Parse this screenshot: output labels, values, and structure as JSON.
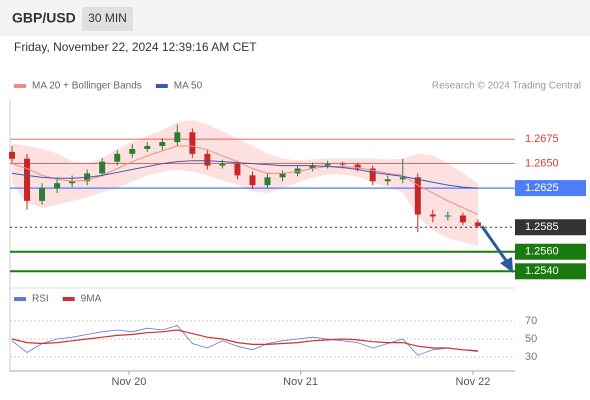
{
  "header": {
    "symbol": "GBP/USD",
    "interval": "30 MIN",
    "datetime": "Friday, November 22, 2024 12:39:16 AM CET",
    "credit": "Research © 2024 Trading Central"
  },
  "chart_data": [
    {
      "type": "candlestick",
      "up_color": "#2e7d32",
      "down_color": "#c62828",
      "band_color": "#fde1e1",
      "open": [
        1.2662,
        1.2655,
        1.2612,
        1.2625,
        1.263,
        1.2632,
        1.264,
        1.2652,
        1.266,
        1.2665,
        1.2668,
        1.2672,
        1.2682,
        1.266,
        1.2648,
        1.265,
        1.2638,
        1.2628,
        1.2636,
        1.264,
        1.2645,
        1.2648,
        1.265,
        1.2649,
        1.2645,
        1.2632,
        1.2634,
        1.2636,
        1.2598,
        1.2596,
        1.2597,
        1.259
      ],
      "high": [
        1.2668,
        1.266,
        1.263,
        1.2636,
        1.2638,
        1.2644,
        1.2656,
        1.2664,
        1.267,
        1.2672,
        1.2676,
        1.269,
        1.2686,
        1.2664,
        1.2654,
        1.2653,
        1.2642,
        1.264,
        1.2643,
        1.2648,
        1.2651,
        1.2653,
        1.2652,
        1.2651,
        1.2648,
        1.2638,
        1.2655,
        1.264,
        1.2603,
        1.2601,
        1.26,
        1.2593
      ],
      "low": [
        1.265,
        1.2603,
        1.2608,
        1.262,
        1.2626,
        1.2628,
        1.2637,
        1.2648,
        1.2656,
        1.2662,
        1.2664,
        1.2668,
        1.2656,
        1.2644,
        1.2645,
        1.2634,
        1.2624,
        1.2625,
        1.2632,
        1.2637,
        1.2642,
        1.2645,
        1.2645,
        1.2642,
        1.2628,
        1.2628,
        1.263,
        1.258,
        1.259,
        1.2592,
        1.2587,
        1.2584
      ],
      "close": [
        1.2655,
        1.2612,
        1.2625,
        1.263,
        1.2632,
        1.264,
        1.2652,
        1.266,
        1.2665,
        1.2668,
        1.2672,
        1.2682,
        1.266,
        1.2648,
        1.265,
        1.2638,
        1.2628,
        1.2636,
        1.264,
        1.2645,
        1.2648,
        1.265,
        1.2649,
        1.2645,
        1.2632,
        1.2634,
        1.2636,
        1.2598,
        1.2596,
        1.2597,
        1.259,
        1.2586
      ],
      "series": [
        {
          "name": "MA 20 + Bollinger Bands",
          "color": "#f28b82",
          "values": [
            1.265,
            1.2645,
            1.2638,
            1.2634,
            1.2632,
            1.2633,
            1.2638,
            1.2645,
            1.2652,
            1.2658,
            1.2663,
            1.2668,
            1.2668,
            1.2664,
            1.2658,
            1.2652,
            1.2645,
            1.264,
            1.264,
            1.2642,
            1.2645,
            1.2647,
            1.2647,
            1.2646,
            1.2643,
            1.264,
            1.2638,
            1.2628,
            1.262,
            1.2612,
            1.2605,
            1.2598
          ],
          "upper": [
            1.267,
            1.2668,
            1.2665,
            1.266,
            1.2652,
            1.265,
            1.2655,
            1.2665,
            1.2672,
            1.2678,
            1.2684,
            1.2692,
            1.2694,
            1.269,
            1.2683,
            1.2675,
            1.2668,
            1.266,
            1.2655,
            1.2653,
            1.2654,
            1.2655,
            1.2655,
            1.2655,
            1.2655,
            1.2654,
            1.2655,
            1.266,
            1.2658,
            1.265,
            1.264,
            1.263
          ],
          "lower": [
            1.263,
            1.261,
            1.2605,
            1.2608,
            1.2612,
            1.2616,
            1.2621,
            1.2625,
            1.2632,
            1.2638,
            1.2642,
            1.2644,
            1.2642,
            1.2638,
            1.2633,
            1.2629,
            1.2622,
            1.262,
            1.2625,
            1.2631,
            1.2636,
            1.2639,
            1.2639,
            1.2637,
            1.2631,
            1.2626,
            1.2621,
            1.2596,
            1.2582,
            1.2574,
            1.257,
            1.2566
          ]
        },
        {
          "name": "MA 50",
          "color": "#3b5ba9",
          "values": [
            1.264,
            1.2638,
            1.2636,
            1.2635,
            1.2635,
            1.2636,
            1.2638,
            1.2641,
            1.2644,
            1.2647,
            1.265,
            1.2652,
            1.2653,
            1.2653,
            1.2652,
            1.2651,
            1.265,
            1.2649,
            1.2648,
            1.2648,
            1.2648,
            1.2647,
            1.2646,
            1.2644,
            1.2641,
            1.2639,
            1.2637,
            1.2634,
            1.2631,
            1.2628,
            1.2626,
            1.2625
          ]
        }
      ],
      "levels": [
        {
          "value": 1.2675,
          "label": "1.2675",
          "color": "#e53935",
          "box": false,
          "dash": false,
          "line_width": 0.8
        },
        {
          "value": 1.265,
          "label": "1.2650",
          "color": "#e53935",
          "box": false,
          "dash": false,
          "line_width": 0.8
        },
        {
          "value": 1.2625,
          "label": "1.2625",
          "color": "#4f7df9",
          "box": true,
          "dash": false,
          "line_width": 1.2
        },
        {
          "value": 1.2585,
          "label": "1.2585",
          "color": "#333333",
          "box": true,
          "dash": true,
          "line_width": 1
        },
        {
          "value": 1.256,
          "label": "1.2560",
          "color": "#1b7a0f",
          "box": true,
          "dash": false,
          "line_width": 2
        },
        {
          "value": 1.254,
          "label": "1.2540",
          "color": "#1b7a0f",
          "box": true,
          "dash": false,
          "line_width": 2
        }
      ],
      "xlim": [
        0,
        33.6
      ],
      "ylim": [
        1.2526,
        1.2715
      ]
    },
    {
      "type": "line",
      "series": [
        {
          "name": "RSI",
          "color": "#5b7be0",
          "values": [
            48,
            35,
            45,
            50,
            52,
            55,
            58,
            60,
            58,
            62,
            60,
            65,
            45,
            40,
            48,
            42,
            38,
            45,
            48,
            50,
            52,
            50,
            48,
            46,
            40,
            45,
            50,
            32,
            38,
            40,
            38,
            36
          ]
        },
        {
          "name": "9MA",
          "color": "#d32f2f",
          "values": [
            50,
            46,
            45,
            46,
            48,
            50,
            52,
            54,
            55,
            57,
            58,
            60,
            56,
            52,
            50,
            46,
            44,
            44,
            45,
            46,
            48,
            49,
            50,
            49,
            47,
            46,
            46,
            42,
            40,
            40,
            38,
            37
          ]
        }
      ],
      "xlim": [
        0,
        33.6
      ],
      "ylim": [
        20,
        80
      ],
      "yticks": [
        30,
        50,
        70
      ],
      "grid": true,
      "xticks": [
        {
          "value": 7.78,
          "label": "Nov 20"
        },
        {
          "value": 19.2,
          "label": "Nov 21"
        },
        {
          "value": 30.67,
          "label": "Nov 22"
        }
      ]
    }
  ]
}
